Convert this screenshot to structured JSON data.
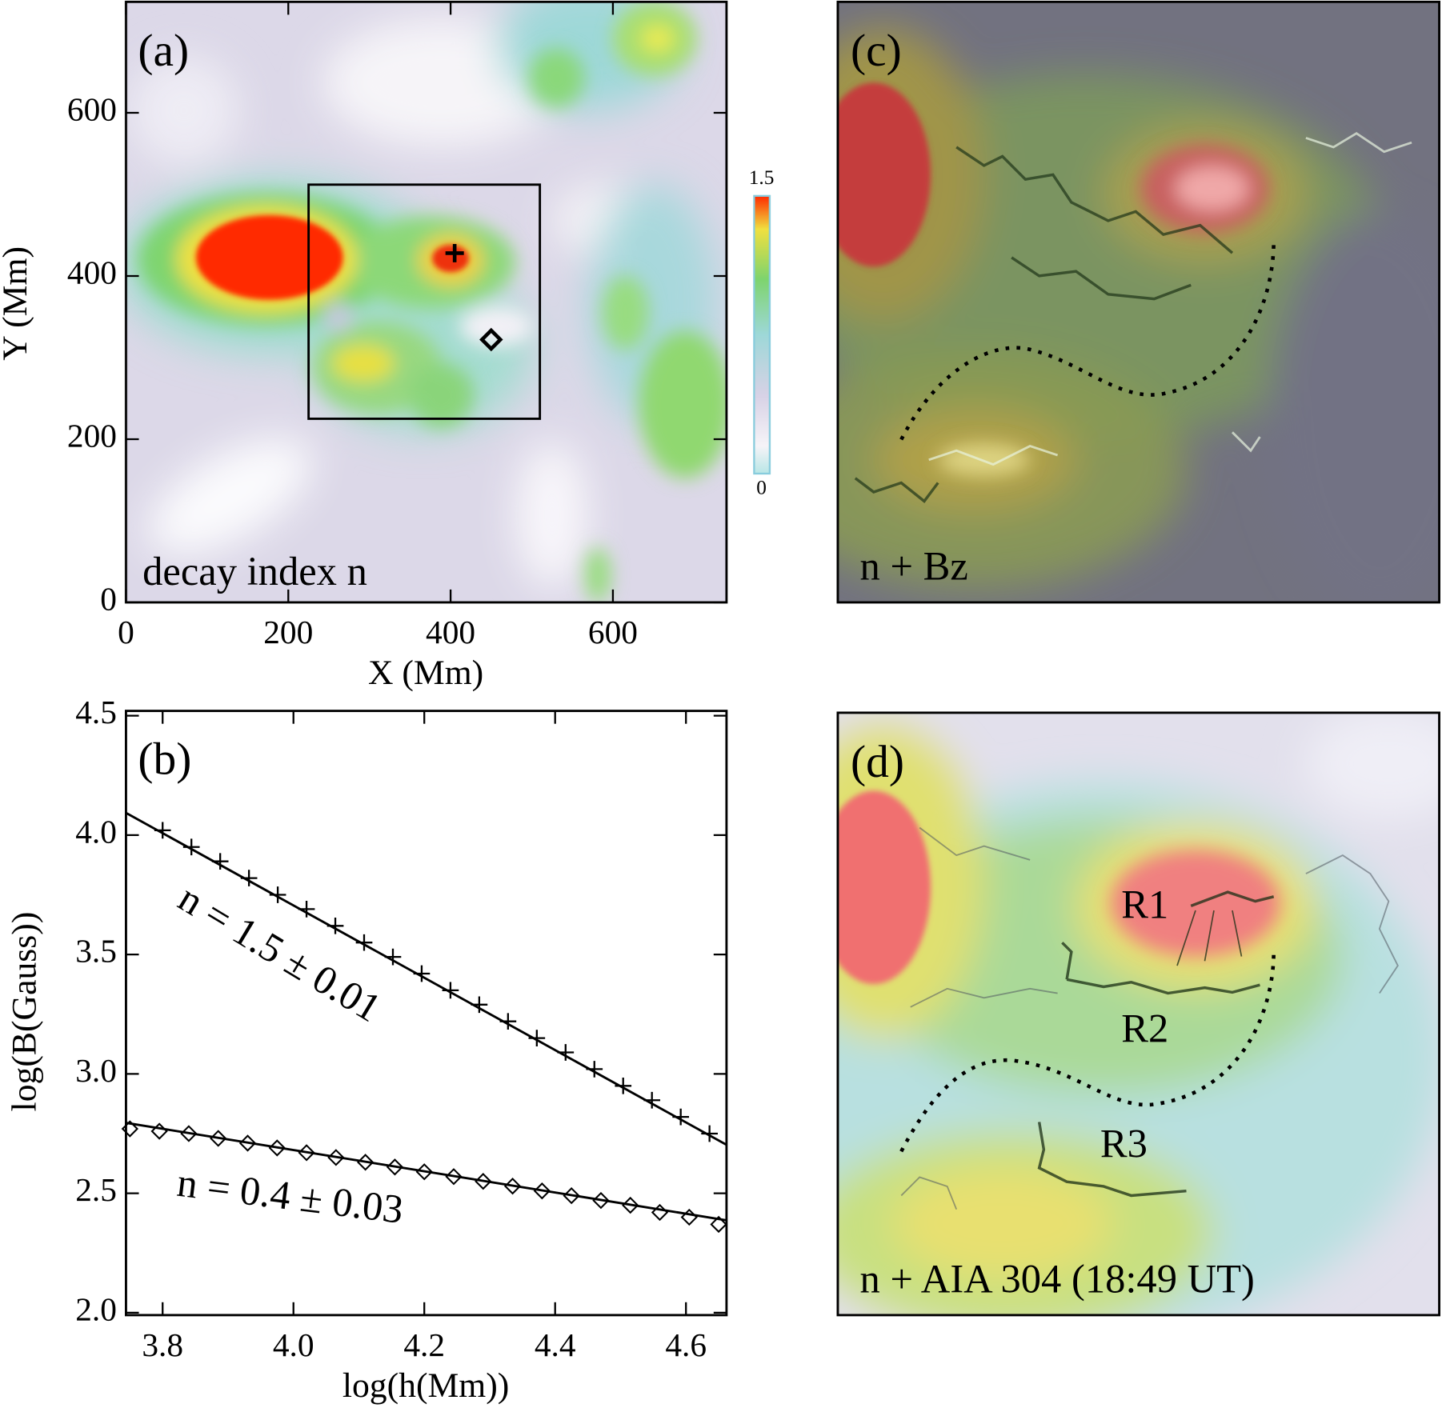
{
  "chart_data": [
    {
      "type": "heatmap",
      "label": "(a)",
      "annotation": "decay index n",
      "x_label": "X (Mm)",
      "y_label": "Y (Mm)",
      "xlim": [
        0,
        740
      ],
      "ylim": [
        0,
        736
      ],
      "xticks": [
        0,
        200,
        400,
        600
      ],
      "yticks": [
        0,
        200,
        400,
        600
      ],
      "colorbar_lim": [
        0,
        1.5
      ],
      "colorbar_ticks": [
        0,
        1.5
      ],
      "box": {
        "x": [
          225,
          510
        ],
        "y": [
          225,
          512
        ]
      },
      "plus": {
        "x": 405,
        "y": 428
      },
      "diamond": {
        "x": 450,
        "y": 322
      }
    },
    {
      "type": "line",
      "label": "(b)",
      "x_label": "log(h(Mm))",
      "y_label": "log(B(Gauss))",
      "xlim": [
        3.744,
        4.662
      ],
      "ylim": [
        1.99,
        4.52
      ],
      "xticks": [
        3.8,
        {
          "value": 4,
          "label": "4.0"
        },
        4.2,
        4.4,
        4.6
      ],
      "yticks": [
        {
          "value": 2,
          "label": "2.0"
        },
        2.5,
        {
          "value": 3,
          "label": "3.0"
        },
        3.5,
        {
          "value": 4,
          "label": "4.0"
        },
        4.5
      ],
      "color": "#000000",
      "series": [
        {
          "marker": "plus",
          "x": [
            3.8,
            3.844,
            3.888,
            3.932,
            3.976,
            4.02,
            4.064,
            4.108,
            4.152,
            4.196,
            4.24,
            4.284,
            4.328,
            4.372,
            4.416,
            4.46,
            4.504,
            4.548,
            4.592,
            4.636
          ],
          "values": [
            4.02,
            3.95,
            3.89,
            3.82,
            3.75,
            3.69,
            3.62,
            3.55,
            3.49,
            3.42,
            3.35,
            3.29,
            3.22,
            3.15,
            3.09,
            3.02,
            2.95,
            2.89,
            2.82,
            2.75
          ]
        },
        {
          "marker": "diamond",
          "x": [
            3.75,
            3.795,
            3.84,
            3.885,
            3.93,
            3.975,
            4.02,
            4.065,
            4.11,
            4.155,
            4.2,
            4.245,
            4.29,
            4.335,
            4.38,
            4.425,
            4.47,
            4.515,
            4.56,
            4.605,
            4.65
          ],
          "values": [
            2.77,
            2.76,
            2.75,
            2.73,
            2.71,
            2.69,
            2.67,
            2.65,
            2.63,
            2.61,
            2.59,
            2.57,
            2.55,
            2.53,
            2.51,
            2.49,
            2.47,
            2.45,
            2.42,
            2.4,
            2.37
          ]
        }
      ],
      "fits": [
        {
          "x": [
            3.744,
            4.662
          ],
          "values": [
            4.093,
            2.703
          ],
          "text": "n = 1.5 ± 0.01"
        },
        {
          "x": [
            3.744,
            4.662
          ],
          "values": [
            2.795,
            2.387
          ],
          "text": "n = 0.4 ± 0.03"
        }
      ]
    },
    {
      "type": "image",
      "label": "(c)",
      "annotation": "n + Bz"
    },
    {
      "type": "image",
      "label": "(d)",
      "annotation": "n + AIA 304 (18:49 UT)",
      "regions": [
        "R1",
        "R2",
        "R3"
      ]
    }
  ]
}
